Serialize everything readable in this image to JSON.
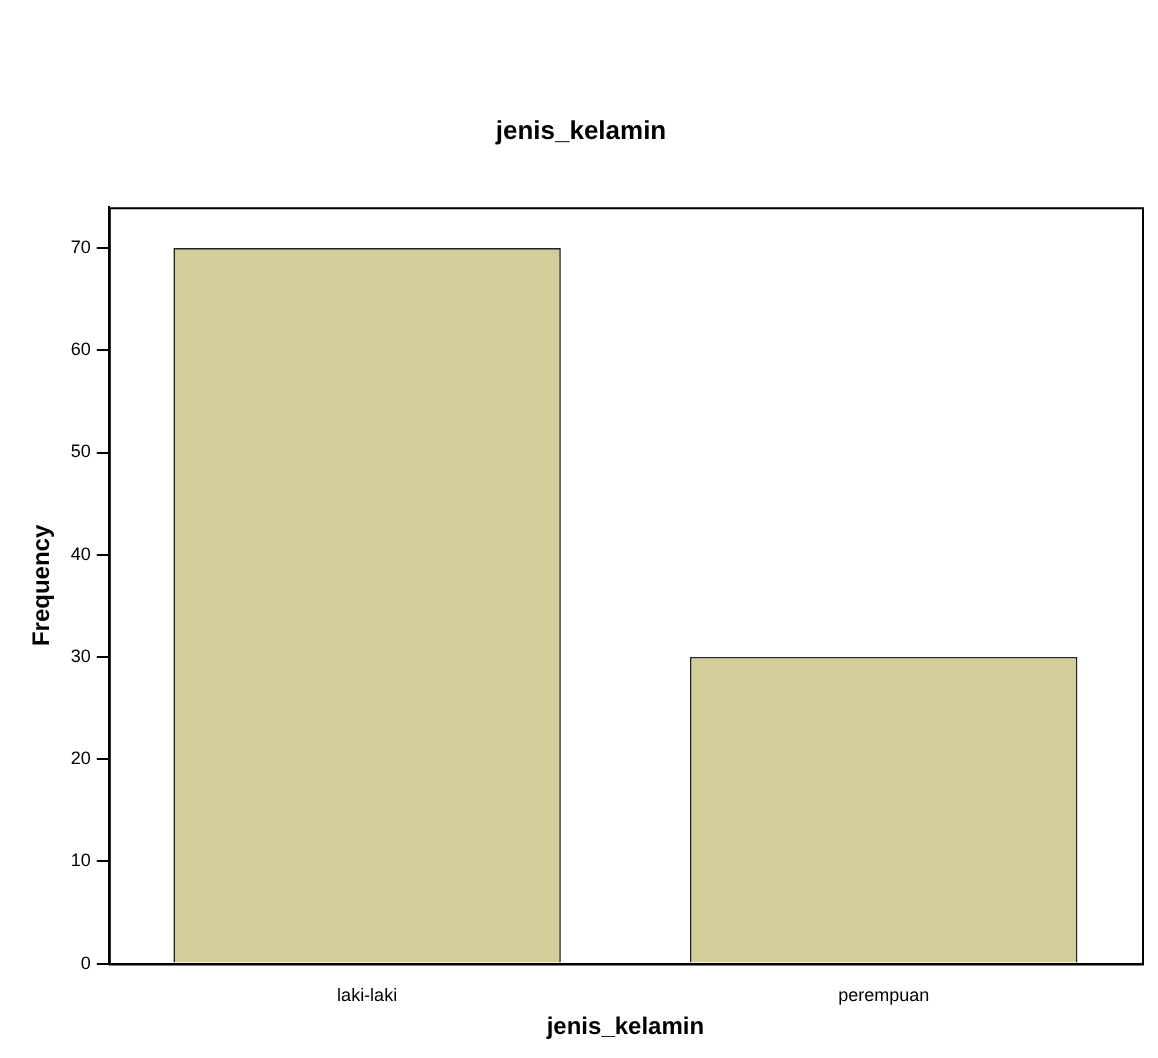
{
  "chart_data": {
    "type": "bar",
    "title": "jenis_kelamin",
    "xlabel": "jenis_kelamin",
    "ylabel": "Frequency",
    "categories": [
      "laki-laki",
      "perempuan"
    ],
    "values": [
      70,
      30
    ],
    "color": "#d3ce99",
    "ylim": [
      0,
      74
    ],
    "yticks": [
      0,
      10,
      20,
      30,
      40,
      50,
      60,
      70
    ],
    "grid": false,
    "legend": false
  }
}
